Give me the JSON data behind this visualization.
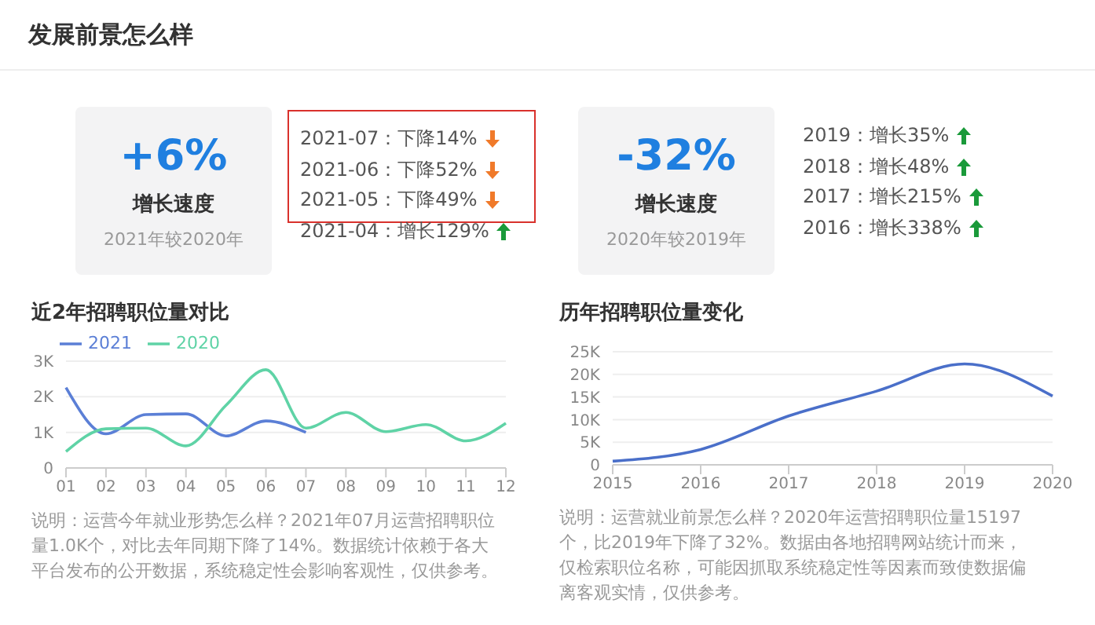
{
  "chart_data": [
    {
      "type": "other",
      "title": "发展前景怎么样",
      "annotations": [
        "+6%",
        "增长速度",
        "2021年较2020年",
        "2021-07：下降14%",
        "2021-06：下降52%",
        "2021-05：下降49%",
        "2021-04：增长129%"
      ],
      "colors": [
        "#f07a2a",
        "#f07a2a",
        "#f07a2a",
        "#1a9a3a"
      ]
    },
    {
      "type": "other",
      "annotations": [
        "-32%",
        "增长速度",
        "2020年较2019年",
        "2019：增长35%",
        "2018：增长48%",
        "2017：增长215%",
        "2016：增长338%"
      ],
      "colors": [
        "#1a9a3a",
        "#1a9a3a",
        "#1a9a3a",
        "#1a9a3a"
      ]
    },
    {
      "type": "line",
      "title": "近2年招聘职位量对比",
      "categories": [
        "01",
        "02",
        "03",
        "04",
        "05",
        "06",
        "07",
        "08",
        "09",
        "10",
        "11",
        "12"
      ],
      "series": [
        {
          "name": "2021",
          "color": "#5b7fd6",
          "values": [
            2260,
            960,
            1500,
            1520,
            900,
            1320,
            1000,
            null,
            null,
            null,
            null,
            null
          ]
        },
        {
          "name": "2020",
          "color": "#5fd3a6",
          "values": [
            460,
            1100,
            1120,
            620,
            1760,
            2760,
            1120,
            1560,
            1020,
            1220,
            760,
            1260
          ]
        }
      ],
      "ylim": [
        0,
        3000
      ],
      "yticks": [
        0,
        {
          "value": 1000,
          "label": "1K"
        },
        {
          "value": 2000,
          "label": "2K"
        },
        {
          "value": 3000,
          "label": "3K"
        }
      ],
      "grid": "y",
      "legend": "top left",
      "marker": "none",
      "annotations": [
        "说明：运营今年就业形势怎么样？2021年07月运营招聘职位量1.0K个，对比去年同期下降了14%。数据统计依赖于各大平台发布的公开数据，系统稳定性会影响客观性，仅供参考。"
      ]
    },
    {
      "type": "line",
      "title": "历年招聘职位量变化",
      "categories": [
        "2015",
        "2016",
        "2017",
        "2018",
        "2019",
        "2020"
      ],
      "series": [
        {
          "color": "#4a6fc9",
          "values": [
            800,
            3400,
            10800,
            16300,
            22300,
            15200
          ]
        }
      ],
      "ylim": [
        0,
        25000
      ],
      "yticks": [
        0,
        {
          "value": 5000,
          "label": "5K"
        },
        {
          "value": 10000,
          "label": "10K"
        },
        {
          "value": 15000,
          "label": "15K"
        },
        {
          "value": 20000,
          "label": "20K"
        },
        {
          "value": 25000,
          "label": "25K"
        }
      ],
      "grid": "y",
      "marker": "none",
      "annotations": [
        "说明：运营就业前景怎么样？2020年运营招聘职位量15197个，比2019年下降了32%。数据由各地招聘网站统计而来，仅检索职位名称，可能因抓取系统稳定性等因素而致使数据偏离客观实情，仅供参考。"
      ]
    }
  ]
}
